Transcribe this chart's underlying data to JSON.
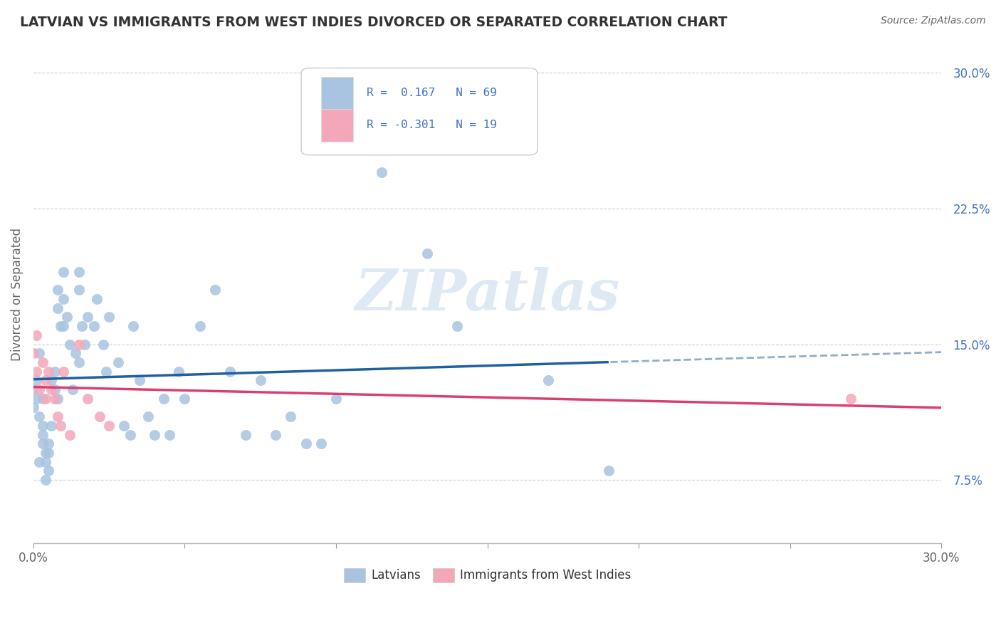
{
  "title": "LATVIAN VS IMMIGRANTS FROM WEST INDIES DIVORCED OR SEPARATED CORRELATION CHART",
  "source": "Source: ZipAtlas.com",
  "ylabel": "Divorced or Separated",
  "xmin": 0.0,
  "xmax": 0.3,
  "ymin": 0.04,
  "ymax": 0.315,
  "yticks": [
    0.075,
    0.15,
    0.225,
    0.3
  ],
  "ytick_labels": [
    "7.5%",
    "15.0%",
    "22.5%",
    "30.0%"
  ],
  "latvian_color": "#a8c4e0",
  "immigrants_color": "#f4a7b9",
  "trend_latvian_color": "#2060a0",
  "trend_immigrants_color": "#d94070",
  "trend_latvian_ext_color": "#90aec8",
  "R_latvian": 0.167,
  "N_latvian": 69,
  "R_immigrants": -0.301,
  "N_immigrants": 19,
  "watermark": "ZIPatlas",
  "latvian_x": [
    0.0,
    0.0,
    0.001,
    0.001,
    0.002,
    0.002,
    0.002,
    0.003,
    0.003,
    0.003,
    0.003,
    0.004,
    0.004,
    0.004,
    0.005,
    0.005,
    0.005,
    0.006,
    0.006,
    0.007,
    0.007,
    0.008,
    0.008,
    0.008,
    0.009,
    0.01,
    0.01,
    0.01,
    0.011,
    0.012,
    0.013,
    0.014,
    0.015,
    0.015,
    0.015,
    0.016,
    0.017,
    0.018,
    0.02,
    0.021,
    0.023,
    0.024,
    0.025,
    0.028,
    0.03,
    0.032,
    0.033,
    0.035,
    0.038,
    0.04,
    0.043,
    0.045,
    0.048,
    0.05,
    0.055,
    0.06,
    0.065,
    0.07,
    0.075,
    0.08,
    0.085,
    0.09,
    0.095,
    0.1,
    0.115,
    0.13,
    0.14,
    0.17,
    0.19
  ],
  "latvian_y": [
    0.125,
    0.115,
    0.12,
    0.13,
    0.145,
    0.11,
    0.085,
    0.12,
    0.105,
    0.1,
    0.095,
    0.09,
    0.085,
    0.075,
    0.095,
    0.09,
    0.08,
    0.13,
    0.105,
    0.135,
    0.125,
    0.12,
    0.18,
    0.17,
    0.16,
    0.19,
    0.175,
    0.16,
    0.165,
    0.15,
    0.125,
    0.145,
    0.19,
    0.18,
    0.14,
    0.16,
    0.15,
    0.165,
    0.16,
    0.175,
    0.15,
    0.135,
    0.165,
    0.14,
    0.105,
    0.1,
    0.16,
    0.13,
    0.11,
    0.1,
    0.12,
    0.1,
    0.135,
    0.12,
    0.16,
    0.18,
    0.135,
    0.1,
    0.13,
    0.1,
    0.11,
    0.095,
    0.095,
    0.12,
    0.245,
    0.2,
    0.16,
    0.13,
    0.08
  ],
  "immigrants_x": [
    0.0,
    0.001,
    0.001,
    0.002,
    0.003,
    0.004,
    0.004,
    0.005,
    0.006,
    0.007,
    0.008,
    0.009,
    0.01,
    0.012,
    0.015,
    0.018,
    0.022,
    0.025,
    0.27
  ],
  "immigrants_y": [
    0.145,
    0.155,
    0.135,
    0.125,
    0.14,
    0.13,
    0.12,
    0.135,
    0.125,
    0.12,
    0.11,
    0.105,
    0.135,
    0.1,
    0.15,
    0.12,
    0.11,
    0.105,
    0.12
  ]
}
